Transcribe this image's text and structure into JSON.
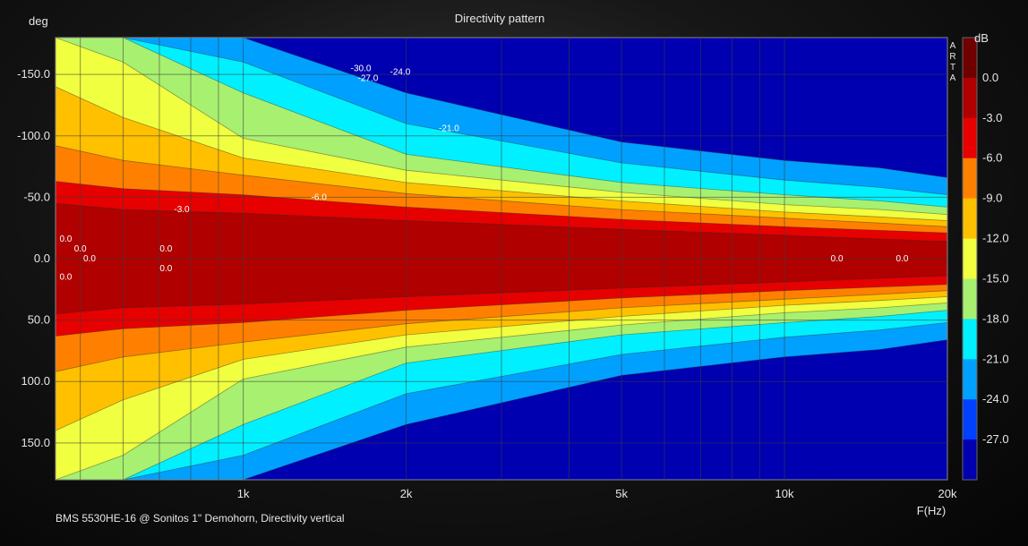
{
  "chart_data": {
    "type": "heatmap",
    "title": "Directivity pattern",
    "xlabel": "F(Hz)",
    "ylabel": "deg",
    "xscale": "log",
    "xlim": [
      450,
      20000
    ],
    "ylim": [
      -180,
      180
    ],
    "x_ticks": [
      {
        "value": 1000,
        "label": "1k"
      },
      {
        "value": 2000,
        "label": "2k"
      },
      {
        "value": 5000,
        "label": "5k"
      },
      {
        "value": 10000,
        "label": "10k"
      },
      {
        "value": 20000,
        "label": "20k"
      }
    ],
    "y_ticks": [
      {
        "value": -150,
        "label": "-150.0"
      },
      {
        "value": -100,
        "label": "-100.0"
      },
      {
        "value": -50,
        "label": "-50.0"
      },
      {
        "value": 0,
        "label": "0.0"
      },
      {
        "value": 50,
        "label": "50.0"
      },
      {
        "value": 100,
        "label": "100.0"
      },
      {
        "value": 150,
        "label": "150.0"
      }
    ],
    "colorbar": {
      "unit": "dB",
      "watermark": "ARTA",
      "levels": [
        {
          "value": 0.0,
          "label": "0.0",
          "color": "#b00000"
        },
        {
          "value": -3.0,
          "label": "-3.0",
          "color": "#e60000"
        },
        {
          "value": -6.0,
          "label": "-6.0",
          "color": "#ff8000"
        },
        {
          "value": -9.0,
          "label": "-9.0",
          "color": "#ffc000"
        },
        {
          "value": -12.0,
          "label": "-12.0",
          "color": "#f0ff40"
        },
        {
          "value": -15.0,
          "label": "-15.0",
          "color": "#a8f070"
        },
        {
          "value": -18.0,
          "label": "-18.0",
          "color": "#00f0ff"
        },
        {
          "value": -21.0,
          "label": "-21.0",
          "color": "#00a0ff"
        },
        {
          "value": -24.0,
          "label": "-24.0",
          "color": "#0040ff"
        },
        {
          "value": -27.0,
          "label": "-27.0",
          "color": "#0000b0"
        }
      ],
      "top_color": "#700000"
    },
    "contours_half_angle_deg": [
      {
        "level": -3,
        "freqs": [
          450,
          600,
          1000,
          2000,
          5000,
          10000,
          15000,
          20000
        ],
        "angles": [
          45,
          40,
          37,
          31,
          24,
          19,
          16,
          14
        ]
      },
      {
        "level": -6,
        "freqs": [
          450,
          600,
          1000,
          2000,
          5000,
          10000,
          15000,
          20000
        ],
        "angles": [
          63,
          57,
          52,
          42,
          32,
          26,
          23,
          21
        ]
      },
      {
        "level": -9,
        "freqs": [
          450,
          600,
          1000,
          2000,
          5000,
          10000,
          15000,
          20000
        ],
        "angles": [
          92,
          80,
          68,
          53,
          40,
          33,
          29,
          26
        ]
      },
      {
        "level": -12,
        "freqs": [
          450,
          600,
          1000,
          2000,
          5000,
          10000,
          15000,
          20000
        ],
        "angles": [
          140,
          115,
          82,
          62,
          47,
          38,
          34,
          31
        ]
      },
      {
        "level": -15,
        "freqs": [
          450,
          600,
          1000,
          2000,
          5000,
          10000,
          15000,
          20000
        ],
        "angles": [
          180,
          160,
          98,
          72,
          54,
          44,
          40,
          36
        ]
      },
      {
        "level": -18,
        "freqs": [
          450,
          600,
          1000,
          2000,
          5000,
          10000,
          15000,
          20000
        ],
        "angles": [
          180,
          180,
          135,
          85,
          62,
          52,
          47,
          42
        ]
      },
      {
        "level": -21,
        "freqs": [
          450,
          600,
          1000,
          2000,
          5000,
          10000,
          15000,
          20000
        ],
        "angles": [
          180,
          180,
          160,
          110,
          78,
          64,
          58,
          52
        ]
      },
      {
        "level": -24,
        "freqs": [
          450,
          600,
          1000,
          2000,
          5000,
          10000,
          15000,
          20000
        ],
        "angles": [
          180,
          180,
          180,
          135,
          95,
          80,
          74,
          66
        ]
      }
    ],
    "contour_labels": [
      {
        "text": "-30.0",
        "f": 1650,
        "a": -155
      },
      {
        "text": "-27.0",
        "f": 1700,
        "a": -147
      },
      {
        "text": "-24.0",
        "f": 1950,
        "a": -152
      },
      {
        "text": "-21.0",
        "f": 2400,
        "a": -106
      },
      {
        "text": "-3.0",
        "f": 770,
        "a": -40
      },
      {
        "text": "-6.0",
        "f": 1380,
        "a": -50
      },
      {
        "text": "0.0",
        "f": 470,
        "a": 15
      },
      {
        "text": "0.0",
        "f": 520,
        "a": 0
      },
      {
        "text": "0.0",
        "f": 500,
        "a": -8
      },
      {
        "text": "0.0",
        "f": 470,
        "a": -16
      },
      {
        "text": "0.0",
        "f": 720,
        "a": 8
      },
      {
        "text": "0.0",
        "f": 720,
        "a": -8
      },
      {
        "text": "0.0",
        "f": 12500,
        "a": 0
      },
      {
        "text": "0.0",
        "f": 16500,
        "a": 0
      }
    ],
    "footer": "BMS 5530HE-16 @ Sonitos 1\" Demohorn, Directivity vertical"
  }
}
